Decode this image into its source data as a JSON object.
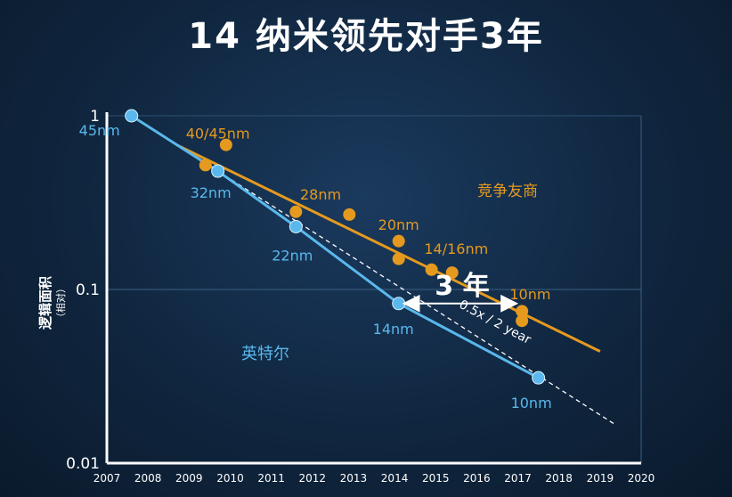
{
  "title": "14 纳米领先对手3年",
  "colors": {
    "intel": "#5ab8ec",
    "competitor": "#e59a1f",
    "background": "#12304e"
  },
  "chart_data": {
    "type": "line",
    "ylabel": "逻辑面积",
    "ylabel_sub": "（相对）",
    "yscale": "log",
    "ylim": [
      0.01,
      1
    ],
    "xlim": [
      2007,
      2020
    ],
    "x_ticks": [
      "2007",
      "2008",
      "2009",
      "2010",
      "2011",
      "2012",
      "2013",
      "2014",
      "2015",
      "2016",
      "2017",
      "2018",
      "2019",
      "2020"
    ],
    "y_ticks": [
      {
        "value": 1,
        "label": "1"
      },
      {
        "value": 0.1,
        "label": "0.1"
      },
      {
        "value": 0.01,
        "label": "0.01"
      }
    ],
    "series": [
      {
        "name": "英特尔",
        "color": "#5ab8ec",
        "points": [
          {
            "x": 2007.6,
            "y": 1.0,
            "label": "45nm"
          },
          {
            "x": 2009.7,
            "y": 0.48,
            "label": "32nm"
          },
          {
            "x": 2011.6,
            "y": 0.23,
            "label": "22nm"
          },
          {
            "x": 2014.1,
            "y": 0.083,
            "label": "14nm"
          },
          {
            "x": 2017.5,
            "y": 0.031,
            "label": "10nm"
          }
        ]
      },
      {
        "name": "竞争友商",
        "color": "#e59a1f",
        "points": [
          {
            "x": 2009.4,
            "y": 0.52
          },
          {
            "x": 2009.9,
            "y": 0.68
          },
          {
            "x": 2011.6,
            "y": 0.28
          },
          {
            "x": 2012.9,
            "y": 0.27
          },
          {
            "x": 2014.1,
            "y": 0.19
          },
          {
            "x": 2014.1,
            "y": 0.15
          },
          {
            "x": 2014.9,
            "y": 0.13
          },
          {
            "x": 2015.4,
            "y": 0.125
          },
          {
            "x": 2017.1,
            "y": 0.075
          },
          {
            "x": 2017.1,
            "y": 0.066
          }
        ],
        "trend": [
          {
            "x": 2008.7,
            "y": 0.68
          },
          {
            "x": 2019.0,
            "y": 0.044
          }
        ],
        "labels": [
          {
            "text": "40/45nm",
            "x": 2009.7,
            "y": 0.74
          },
          {
            "text": "28nm",
            "x": 2012.2,
            "y": 0.33
          },
          {
            "text": "20nm",
            "x": 2014.1,
            "y": 0.22
          },
          {
            "text": "14/16nm",
            "x": 2015.5,
            "y": 0.16
          },
          {
            "text": "10nm",
            "x": 2017.3,
            "y": 0.088
          }
        ]
      }
    ],
    "reference_line": {
      "label": "0.5x / 2 year",
      "points": [
        {
          "x": 2009.7,
          "y": 0.48
        },
        {
          "x": 2019.4,
          "y": 0.0165
        }
      ]
    },
    "annotation": {
      "text": "3 年",
      "from": {
        "x": 2014.1,
        "y": 0.083
      },
      "to": {
        "x": 2017.1,
        "y": 0.083
      }
    },
    "series_labels": [
      {
        "text": "竞争友商",
        "series": "competitor"
      },
      {
        "text": "英特尔",
        "series": "intel"
      }
    ]
  }
}
